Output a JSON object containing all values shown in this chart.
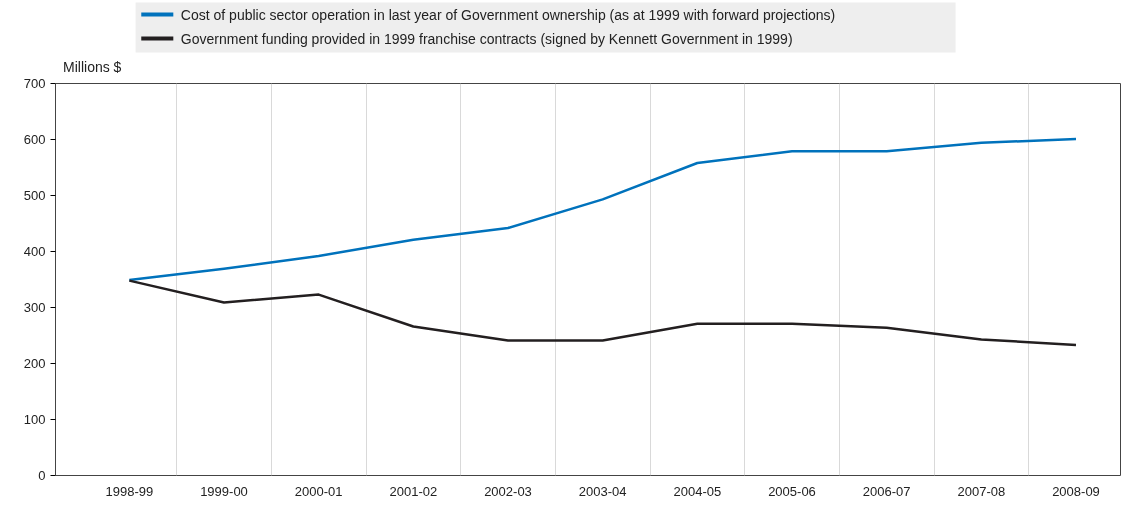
{
  "chart_data": {
    "type": "line",
    "ylabel": "Millions $",
    "categories": [
      "1998-99",
      "1999-00",
      "2000-01",
      "2001-02",
      "2002-03",
      "2003-04",
      "2004-05",
      "2005-06",
      "2006-07",
      "2007-08",
      "2008-09"
    ],
    "series": [
      {
        "name": "Cost of public sector operation in last year of Government ownership (as at 1999 with forward projections)",
        "color": "#0072bc",
        "values": [
          349,
          369,
          392,
          421,
          442,
          493,
          558,
          579,
          579,
          594,
          601
        ]
      },
      {
        "name": "Government funding provided in 1999 franchise contracts (signed by Kennett Government in 1999)",
        "color": "#231f20",
        "values": [
          348,
          309,
          323,
          266,
          241,
          241,
          271,
          271,
          264,
          243,
          233
        ]
      }
    ],
    "ylim": [
      0,
      700
    ],
    "yticks": [
      0,
      100,
      200,
      300,
      400,
      500,
      600,
      700
    ],
    "grid": "x",
    "legend": "top",
    "marker": "none",
    "line_style": "solid"
  }
}
